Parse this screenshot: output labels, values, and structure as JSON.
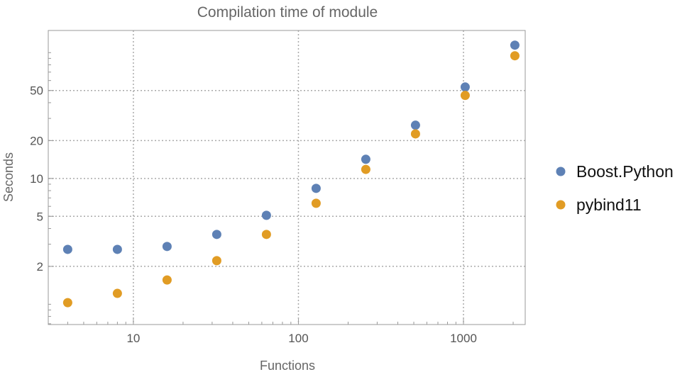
{
  "chart_data": {
    "type": "scatter",
    "title": "Compilation time of module",
    "xlabel": "Functions",
    "ylabel": "Seconds",
    "xscale": "log",
    "yscale": "log",
    "xlim": [
      3.05,
      2366
    ],
    "ylim": [
      0.69,
      150
    ],
    "grid": true,
    "legend_placement": "right",
    "x_ticks": [
      10,
      100,
      1000
    ],
    "x_tick_labels": [
      "10",
      "100",
      "1000"
    ],
    "y_ticks": [
      2,
      5,
      10,
      20,
      50
    ],
    "y_tick_labels": [
      "2",
      "5",
      "10",
      "20",
      "50"
    ],
    "x": [
      4,
      8,
      16,
      32,
      64,
      128,
      256,
      512,
      1024,
      2048
    ],
    "series": [
      {
        "name": "Boost.Python",
        "color": "#5E81B5",
        "values": [
          2.73,
          2.73,
          2.88,
          3.59,
          5.09,
          8.34,
          14.2,
          26.5,
          53.3,
          114.7
        ]
      },
      {
        "name": "pybind11",
        "color": "#E19C24",
        "values": [
          1.03,
          1.22,
          1.56,
          2.22,
          3.59,
          6.35,
          11.8,
          22.6,
          45.7,
          94.4
        ]
      }
    ]
  }
}
